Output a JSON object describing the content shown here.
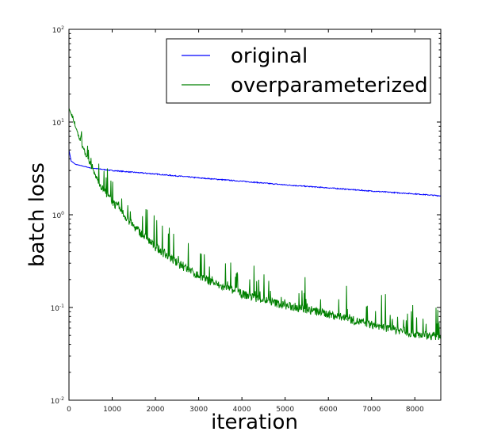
{
  "chart_data": {
    "type": "line",
    "title": "",
    "xlabel": "iteration",
    "ylabel": "batch loss",
    "xlim": [
      0,
      8600
    ],
    "ylim": [
      0.01,
      100
    ],
    "yscale": "log",
    "grid": false,
    "legend_position": "top-right",
    "x_ticks": [
      0,
      1000,
      2000,
      3000,
      4000,
      5000,
      6000,
      7000,
      8000
    ],
    "x_tick_labels": [
      "0",
      "1000",
      "2000",
      "3000",
      "4000",
      "5000",
      "6000",
      "7000",
      "8000"
    ],
    "y_ticks": [
      0.01,
      0.1,
      1,
      10,
      100
    ],
    "y_tick_labels": [
      {
        "base": "10",
        "exp": "-2"
      },
      {
        "base": "10",
        "exp": "-1"
      },
      {
        "base": "10",
        "exp": "0"
      },
      {
        "base": "10",
        "exp": "1"
      },
      {
        "base": "10",
        "exp": "2"
      }
    ],
    "series": [
      {
        "name": "original",
        "color": "#0000ff",
        "x": [
          0,
          50,
          150,
          500,
          1000,
          2000,
          3000,
          4000,
          5000,
          6000,
          7000,
          8000,
          8600
        ],
        "y": [
          5.0,
          3.8,
          3.5,
          3.2,
          3.0,
          2.75,
          2.5,
          2.3,
          2.1,
          1.95,
          1.8,
          1.68,
          1.6
        ],
        "noise": 0.04
      },
      {
        "name": "overparameterized",
        "color": "#008000",
        "x": [
          0,
          250,
          500,
          750,
          1000,
          1500,
          2000,
          2500,
          3000,
          3500,
          4000,
          5000,
          6000,
          7000,
          8000,
          8600
        ],
        "y": [
          14,
          6.5,
          3.3,
          2.0,
          1.4,
          0.75,
          0.45,
          0.3,
          0.22,
          0.17,
          0.14,
          0.105,
          0.085,
          0.065,
          0.052,
          0.048
        ],
        "noise": 0.35
      }
    ]
  }
}
